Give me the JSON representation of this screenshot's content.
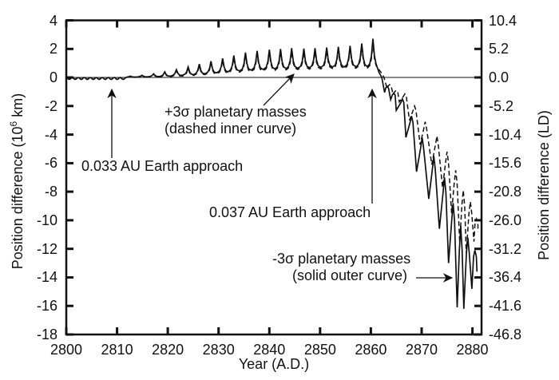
{
  "figure": {
    "background": "#ffffff",
    "ink": "#111111"
  },
  "chart_data": {
    "type": "line",
    "title": "",
    "xlabel": "Year (A.D.)",
    "ylabel_left": {
      "pre": "Position difference (10",
      "sup": "6",
      "post": " km)"
    },
    "ylabel_right": "Position difference (LD)",
    "xlim": [
      2800,
      2881.8
    ],
    "ylim_left": [
      -18,
      4
    ],
    "ylim_right": [
      -46.8,
      10.4
    ],
    "grid": false,
    "x_ticks": [
      2800,
      2810,
      2820,
      2830,
      2840,
      2850,
      2860,
      2870,
      2880
    ],
    "y_ticks_left": [
      "4",
      "2",
      "0",
      "-2",
      "-4",
      "-6",
      "-8",
      "-10",
      "-12",
      "-14",
      "-16",
      "-18"
    ],
    "y_ticks_left_values": [
      4,
      2,
      0,
      -2,
      -4,
      -6,
      -8,
      -10,
      -12,
      -14,
      -16,
      -18
    ],
    "y_ticks_right": [
      "10.4",
      "5.2",
      "0.0",
      "-5.2",
      "-10.4",
      "-15.6",
      "-20.8",
      "-26.0",
      "-31.2",
      "-36.4",
      "-41.6",
      "-46.8"
    ],
    "series": [
      {
        "name": "-3σ planetary masses (solid outer curve)",
        "style": "solid",
        "ripple": {
          "start": 2800,
          "end": 2811.8,
          "period": 1.18,
          "depth": 0.14
        },
        "base_points": [
          [
            2812.4,
            0.02
          ],
          [
            2820,
            0.08
          ],
          [
            2826,
            0.22
          ],
          [
            2832,
            0.4
          ],
          [
            2838,
            0.55
          ],
          [
            2844,
            0.63
          ],
          [
            2852,
            0.72
          ],
          [
            2860,
            0.76
          ]
        ],
        "peaks": [
          [
            2812.6,
            0.1
          ],
          [
            2814.9,
            0.16
          ],
          [
            2817.2,
            0.26
          ],
          [
            2819.4,
            0.4
          ],
          [
            2821.7,
            0.55
          ],
          [
            2824.0,
            0.74
          ],
          [
            2826.2,
            0.94
          ],
          [
            2828.5,
            1.14
          ],
          [
            2830.8,
            1.34
          ],
          [
            2833.0,
            1.54
          ],
          [
            2835.3,
            1.74
          ],
          [
            2837.6,
            1.86
          ],
          [
            2840.0,
            1.95
          ],
          [
            2842.2,
            2.0
          ],
          [
            2844.4,
            2.05
          ],
          [
            2846.8,
            2.02
          ],
          [
            2849.0,
            2.05
          ],
          [
            2851.3,
            2.1
          ],
          [
            2853.6,
            2.15
          ],
          [
            2855.9,
            2.22
          ],
          [
            2858.2,
            2.38
          ],
          [
            2860.4,
            2.72
          ]
        ],
        "descent": [
          [
            2861.6,
            0.35
          ],
          [
            2862.15,
            0.0
          ],
          [
            2862.7,
            -1.05
          ],
          [
            2863.2,
            -0.62
          ],
          [
            2863.9,
            -1.55
          ],
          [
            2864.5,
            -1.1
          ],
          [
            2865.0,
            -2.3
          ],
          [
            2866.2,
            -1.5
          ],
          [
            2866.9,
            -4.2
          ],
          [
            2868.0,
            -2.7
          ],
          [
            2869.0,
            -6.6
          ],
          [
            2870.1,
            -4.2
          ],
          [
            2871.4,
            -8.5
          ],
          [
            2872.4,
            -5.5
          ],
          [
            2873.5,
            -10.6
          ],
          [
            2874.5,
            -7.0
          ],
          [
            2875.3,
            -13.0
          ],
          [
            2876.2,
            -8.8
          ],
          [
            2877.0,
            -16.1
          ],
          [
            2877.7,
            -10.4
          ],
          [
            2878.3,
            -16.2
          ],
          [
            2879.1,
            -11.2
          ],
          [
            2879.9,
            -14.8
          ],
          [
            2880.5,
            -12.1
          ],
          [
            2880.9,
            -13.6
          ]
        ]
      },
      {
        "name": "+3σ planetary masses (dashed inner curve)",
        "style": "dashed",
        "ripple": {
          "start": 2800,
          "end": 2811.8,
          "period": 1.18,
          "depth": 0.12
        },
        "base_points": [
          [
            2812.4,
            0.0
          ],
          [
            2820,
            0.04
          ],
          [
            2826,
            0.16
          ],
          [
            2832,
            0.32
          ],
          [
            2838,
            0.46
          ],
          [
            2844,
            0.54
          ],
          [
            2852,
            0.62
          ],
          [
            2860,
            0.66
          ]
        ],
        "peaks": [
          [
            2812.6,
            0.09
          ],
          [
            2814.9,
            0.14
          ],
          [
            2817.2,
            0.23
          ],
          [
            2819.4,
            0.35
          ],
          [
            2821.7,
            0.48
          ],
          [
            2824.0,
            0.65
          ],
          [
            2826.2,
            0.83
          ],
          [
            2828.5,
            1.0
          ],
          [
            2830.8,
            1.18
          ],
          [
            2833.0,
            1.36
          ],
          [
            2835.3,
            1.53
          ],
          [
            2837.6,
            1.64
          ],
          [
            2840.0,
            1.72
          ],
          [
            2842.2,
            1.76
          ],
          [
            2844.4,
            1.8
          ],
          [
            2846.8,
            1.78
          ],
          [
            2849.0,
            1.8
          ],
          [
            2851.3,
            1.85
          ],
          [
            2853.6,
            1.89
          ],
          [
            2855.9,
            1.95
          ],
          [
            2858.2,
            2.09
          ],
          [
            2860.4,
            2.39
          ]
        ],
        "descent": [
          [
            2862.1,
            0.3
          ],
          [
            2862.6,
            0.0
          ],
          [
            2863.2,
            -0.8
          ],
          [
            2863.7,
            -0.5
          ],
          [
            2864.4,
            -1.2
          ],
          [
            2865.0,
            -0.9
          ],
          [
            2865.6,
            -1.7
          ],
          [
            2866.7,
            -1.15
          ],
          [
            2867.6,
            -3.0
          ],
          [
            2868.6,
            -2.0
          ],
          [
            2869.7,
            -4.7
          ],
          [
            2870.7,
            -3.1
          ],
          [
            2872.0,
            -6.1
          ],
          [
            2873.0,
            -4.1
          ],
          [
            2874.1,
            -7.7
          ],
          [
            2875.0,
            -5.2
          ],
          [
            2875.9,
            -9.5
          ],
          [
            2876.7,
            -6.5
          ],
          [
            2877.5,
            -11.6
          ],
          [
            2878.2,
            -7.9
          ],
          [
            2878.8,
            -12.3
          ],
          [
            2879.6,
            -8.7
          ],
          [
            2880.3,
            -11.5
          ],
          [
            2880.8,
            -9.9
          ],
          [
            2881.1,
            -10.8
          ]
        ]
      }
    ],
    "annotations": [
      {
        "text": "0.033 AU Earth approach",
        "arrow": [
          140,
          198,
          140,
          112
        ]
      },
      {
        "lines": [
          "+3σ planetary masses",
          "(dashed inner curve)"
        ],
        "arrow": [
          330,
          132,
          368,
          93
        ]
      },
      {
        "text": "0.037 AU Earth approach",
        "arrow": [
          466,
          255,
          466,
          112
        ]
      },
      {
        "lines": [
          "-3σ planetary masses",
          "(solid outer curve)"
        ],
        "arrow": [
          521,
          348,
          566,
          348
        ]
      }
    ]
  }
}
